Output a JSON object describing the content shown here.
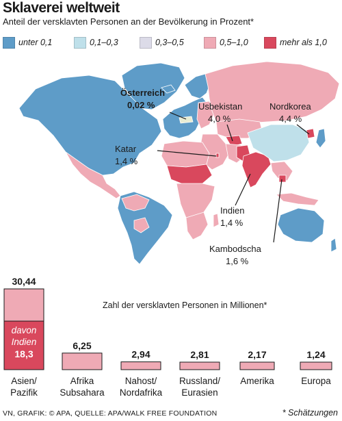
{
  "header": {
    "title": "Sklaverei weltweit",
    "subtitle": "Anteil der versklavten Personen an der Bevölkerung in Prozent*"
  },
  "legend": [
    {
      "label": "unter 0,1",
      "color": "#5e9cc8"
    },
    {
      "label": "0,1–0,3",
      "color": "#bfe0ea"
    },
    {
      "label": "0,3–0,5",
      "color": "#dcdbe8"
    },
    {
      "label": "0,5–1,0",
      "color": "#efaab5"
    },
    {
      "label": "mehr als 1,0",
      "color": "#d9485d"
    }
  ],
  "map_callouts": [
    {
      "name": "Österreich",
      "value": "0,02 %"
    },
    {
      "name": "Usbekistan",
      "value": "4,0 %"
    },
    {
      "name": "Nordkorea",
      "value": "4,4 %"
    },
    {
      "name": "Katar",
      "value": "1,4 %"
    },
    {
      "name": "Indien",
      "value": "1,4 %"
    },
    {
      "name": "Kambodscha",
      "value": "1,6 %"
    }
  ],
  "chart_data": {
    "type": "bar",
    "title": "Zahl der versklavten Personen in Millionen*",
    "categories": [
      "Asien/\nPazifik",
      "Afrika\nSubsahara",
      "Nahost/\nNordafrika",
      "Russland/\nEurasien",
      "Amerika",
      "Europa"
    ],
    "values": [
      30.44,
      6.25,
      2.94,
      2.81,
      2.17,
      1.24
    ],
    "value_labels": [
      "30,44",
      "6,25",
      "2,94",
      "2,81",
      "2,17",
      "1,24"
    ],
    "highlight": {
      "line1": "davon",
      "line2": "Indien",
      "value": 18.3,
      "value_label": "18,3"
    },
    "bar_color": "#efaab5",
    "highlight_color": "#d9485d"
  },
  "footer": {
    "source": "VN, GRAFIK: © APA, QUELLE: APA/WALK FREE FOUNDATION",
    "note": "* Schätzungen"
  }
}
